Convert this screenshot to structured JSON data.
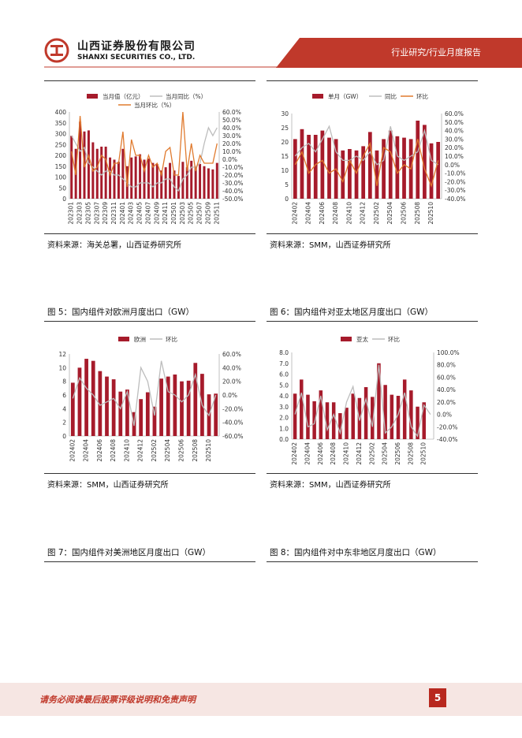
{
  "header": {
    "company_cn": "山西证券股份有限公司",
    "company_en": "SHANXI SECURITIES CO., LTD.",
    "section_title": "行业研究/行业月度报告"
  },
  "colors": {
    "brand": "#c0392b",
    "bar": "#a61b2b",
    "line_orange": "#e07a2e",
    "line_gray": "#bdbdbd"
  },
  "panels": [
    {
      "source": "资料来源：海关总署，山西证券研究所",
      "caption": "图 5：国内组件对欧洲月度出口（GW）"
    },
    {
      "source": "资料来源：SMM，山西证券研究所",
      "caption": "图 6：国内组件对亚太地区月度出口（GW）"
    },
    {
      "source": "资料来源：SMM，山西证券研究所",
      "caption": "图 7：国内组件对美洲地区月度出口（GW）"
    },
    {
      "source": "资料来源：SMM，山西证券研究所",
      "caption": "图 8：国内组件对中东非地区月度出口（GW）"
    }
  ],
  "chart_data": [
    {
      "type": "bar",
      "legend": [
        "当月值（亿元）",
        "当月同比（%）",
        "当月环比（%）"
      ],
      "categories": [
        "202301",
        "202302",
        "202303",
        "202304",
        "202305",
        "202306",
        "202307",
        "202308",
        "202309",
        "202310",
        "202311",
        "202312",
        "202401",
        "202402",
        "202403",
        "202404",
        "202405",
        "202406",
        "202407",
        "202408",
        "202409",
        "202410",
        "202411",
        "202412",
        "202501",
        "202502",
        "202503",
        "202504",
        "202505",
        "202506",
        "202507",
        "202508",
        "202509",
        "202510",
        "202511"
      ],
      "x_tick_labels": [
        "202301",
        "202303",
        "202305",
        "202307",
        "202309",
        "202311",
        "202401",
        "202403",
        "202405",
        "202407",
        "202409",
        "202411",
        "202501",
        "202503",
        "202505",
        "202507",
        "202509",
        "202511"
      ],
      "series": [
        {
          "name": "当月值（亿元）",
          "axis": "left",
          "values": [
            290,
            230,
            355,
            310,
            315,
            260,
            230,
            240,
            240,
            190,
            180,
            170,
            230,
            150,
            190,
            195,
            205,
            180,
            185,
            165,
            160,
            130,
            145,
            165,
            130,
            105,
            170,
            145,
            175,
            150,
            160,
            150,
            140,
            135,
            165
          ]
        },
        {
          "name": "当月同比（%）",
          "axis": "right",
          "values": [
            30,
            20,
            10,
            15,
            -5,
            -10,
            -15,
            -20,
            -15,
            -15,
            -20,
            -20,
            -25,
            -30,
            -35,
            -35,
            -30,
            -30,
            -30,
            -35,
            -30,
            -30,
            -25,
            -25,
            -35,
            -40,
            -25,
            -20,
            -10,
            -10,
            -5,
            20,
            40,
            30,
            40
          ]
        },
        {
          "name": "当月环比（%）",
          "axis": "right",
          "values": [
            10,
            -20,
            55,
            -10,
            5,
            -15,
            -10,
            5,
            0,
            -20,
            -5,
            -5,
            35,
            -35,
            25,
            5,
            5,
            -15,
            5,
            -10,
            -5,
            -20,
            10,
            15,
            -20,
            -20,
            60,
            -15,
            20,
            -15,
            5,
            -5,
            -5,
            -5,
            20
          ]
        }
      ],
      "ylim_left": [
        0,
        400
      ],
      "yticks_left": [
        "400",
        "350",
        "300",
        "250",
        "200",
        "150",
        "100",
        "50",
        "0"
      ],
      "ylim_right": [
        -50,
        60
      ],
      "yticks_right": [
        "60.0%",
        "50.0%",
        "40.0%",
        "30.0%",
        "20.0%",
        "10.0%",
        "0.0%",
        "-10.0%",
        "-20.0%",
        "-30.0%",
        "-40.0%",
        "-50.0%"
      ]
    },
    {
      "type": "bar",
      "legend": [
        "单月（GW）",
        "同比",
        "环比"
      ],
      "categories": [
        "202402",
        "202403",
        "202404",
        "202405",
        "202406",
        "202407",
        "202408",
        "202409",
        "202410",
        "202411",
        "202412",
        "202501",
        "202502",
        "202503",
        "202504",
        "202505",
        "202506",
        "202507",
        "202508",
        "202509",
        "202510",
        "202511"
      ],
      "x_tick_labels": [
        "202402",
        "202404",
        "202406",
        "202408",
        "202410",
        "202412",
        "202502",
        "202504",
        "202506",
        "202508",
        "202510"
      ],
      "series": [
        {
          "name": "单月（GW）",
          "axis": "left",
          "values": [
            21,
            24.5,
            22.5,
            22.5,
            24,
            21.5,
            21,
            17,
            17.5,
            17,
            18.5,
            23.5,
            17,
            21,
            24,
            22,
            21.5,
            21,
            27.5,
            26,
            19.5,
            20
          ]
        },
        {
          "name": "同比",
          "axis": "right",
          "values": [
            10,
            20,
            25,
            15,
            30,
            45,
            15,
            5,
            5,
            10,
            5,
            15,
            0,
            5,
            45,
            10,
            5,
            10,
            15,
            40,
            5,
            0
          ]
        },
        {
          "name": "环比",
          "axis": "right",
          "values": [
            0,
            15,
            -10,
            0,
            5,
            -10,
            -5,
            -20,
            5,
            -10,
            10,
            25,
            -25,
            20,
            15,
            -10,
            0,
            -5,
            30,
            -5,
            -25,
            5
          ]
        }
      ],
      "ylim_left": [
        0,
        30
      ],
      "yticks_left": [
        "30",
        "25",
        "20",
        "15",
        "10",
        "5",
        "0"
      ],
      "ylim_right": [
        -40,
        60
      ],
      "yticks_right": [
        "60.0%",
        "50.0%",
        "40.0%",
        "30.0%",
        "20.0%",
        "10.0%",
        "0.0%",
        "-10.0%",
        "-20.0%",
        "-30.0%",
        "-40.0%"
      ]
    },
    {
      "type": "bar",
      "legend": [
        "欧洲",
        "环比"
      ],
      "categories": [
        "202402",
        "202403",
        "202404",
        "202405",
        "202406",
        "202407",
        "202408",
        "202409",
        "202410",
        "202411",
        "202412",
        "202501",
        "202502",
        "202503",
        "202504",
        "202505",
        "202506",
        "202507",
        "202508",
        "202509",
        "202510",
        "202511"
      ],
      "x_tick_labels": [
        "202402",
        "202404",
        "202406",
        "202408",
        "202410",
        "202412",
        "202502",
        "202504",
        "202506",
        "202508",
        "202510"
      ],
      "series": [
        {
          "name": "欧洲",
          "axis": "left",
          "values": [
            7.8,
            10,
            11.3,
            11,
            9.5,
            8.7,
            8.3,
            6.5,
            6.8,
            3.5,
            5.4,
            6.4,
            4.3,
            8.4,
            8.7,
            9,
            8,
            8.1,
            10.7,
            9.1,
            6.1,
            6.2
          ]
        },
        {
          "name": "环比",
          "axis": "right",
          "values": [
            -5,
            25,
            10,
            0,
            -15,
            -10,
            -5,
            -20,
            5,
            -45,
            40,
            20,
            -30,
            50,
            5,
            0,
            -10,
            0,
            30,
            -15,
            -30,
            0
          ]
        }
      ],
      "ylim_left": [
        0,
        12
      ],
      "yticks_left": [
        "12",
        "10",
        "8",
        "6",
        "4",
        "2",
        "0"
      ],
      "ylim_right": [
        -60,
        60
      ],
      "yticks_right": [
        "60.0%",
        "40.0%",
        "20.0%",
        "0.0%",
        "-20.0%",
        "-40.0%",
        "-60.0%"
      ]
    },
    {
      "type": "bar",
      "legend": [
        "亚太",
        "环比"
      ],
      "categories": [
        "202402",
        "202403",
        "202404",
        "202405",
        "202406",
        "202407",
        "202408",
        "202409",
        "202410",
        "202411",
        "202412",
        "202501",
        "202502",
        "202503",
        "202504",
        "202505",
        "202506",
        "202507",
        "202508",
        "202509",
        "202510",
        "202511"
      ],
      "x_tick_labels": [
        "202402",
        "202404",
        "202406",
        "202408",
        "202410",
        "202412",
        "202502",
        "202504",
        "202506",
        "202508",
        "202510"
      ],
      "series": [
        {
          "name": "亚太",
          "axis": "left",
          "values": [
            4.2,
            5.5,
            4.1,
            3.5,
            4.5,
            3.4,
            3.4,
            2.4,
            2.9,
            4.2,
            3.8,
            4.8,
            3.9,
            7,
            5,
            4.1,
            4,
            5.5,
            4.5,
            3,
            3.4,
            0
          ]
        },
        {
          "name": "环比",
          "axis": "right",
          "values": [
            0,
            35,
            -20,
            -15,
            30,
            -25,
            0,
            -30,
            20,
            45,
            -10,
            25,
            -20,
            80,
            -30,
            -20,
            0,
            35,
            -20,
            -35,
            15,
            0
          ]
        }
      ],
      "ylim_left": [
        0,
        8
      ],
      "yticks_left": [
        "8.0",
        "7.0",
        "6.0",
        "5.0",
        "4.0",
        "3.0",
        "2.0",
        "1.0",
        "0.0"
      ],
      "ylim_right": [
        -40,
        100
      ],
      "yticks_right": [
        "100.0%",
        "80.0%",
        "60.0%",
        "40.0%",
        "20.0%",
        "0.0%",
        "-20.0%",
        "-40.0%"
      ]
    }
  ],
  "footer": {
    "disclaimer": "请务必阅读最后股票评级说明和免责声明",
    "page": "5"
  }
}
